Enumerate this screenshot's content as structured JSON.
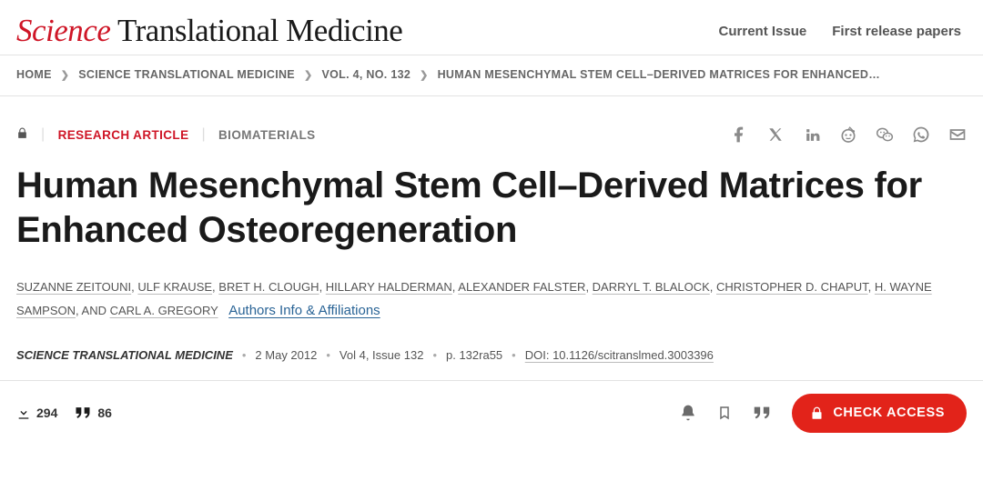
{
  "header": {
    "logo_science": "Science",
    "logo_rest": " Translational Medicine",
    "nav": {
      "current_issue": "Current Issue",
      "first_release": "First release papers"
    }
  },
  "breadcrumb": {
    "home": "HOME",
    "journal": "SCIENCE TRANSLATIONAL MEDICINE",
    "volume": "VOL. 4, NO. 132",
    "article": "HUMAN MESENCHYMAL STEM CELL–DERIVED MATRICES FOR ENHANCED…"
  },
  "tags": {
    "research": "RESEARCH ARTICLE",
    "category": "BIOMATERIALS"
  },
  "title": "Human Mesenchymal Stem Cell–Derived Matrices for Enhanced Osteoregeneration",
  "authors": {
    "list": [
      "SUZANNE ZEITOUNI",
      "ULF KRAUSE",
      "BRET H. CLOUGH",
      "HILLARY HALDERMAN",
      "ALEXANDER FALSTER",
      "DARRYL T. BLALOCK",
      "CHRISTOPHER D. CHAPUT",
      "H. WAYNE SAMPSON"
    ],
    "trailing": ", AND ",
    "last": "CARL A. GREGORY",
    "info_link": "Authors Info & Affiliations"
  },
  "pub": {
    "journal": "SCIENCE TRANSLATIONAL MEDICINE",
    "date": "2 May 2012",
    "vol": "Vol 4, Issue 132",
    "page": "p. 132ra55",
    "doi": "DOI: 10.1126/scitranslmed.3003396"
  },
  "metrics": {
    "downloads": "294",
    "citations": "86"
  },
  "check_access": "CHECK ACCESS",
  "colors": {
    "brand_red": "#cf1627",
    "btn_red": "#e2231a",
    "text": "#1a1a1a",
    "muted": "#666"
  }
}
